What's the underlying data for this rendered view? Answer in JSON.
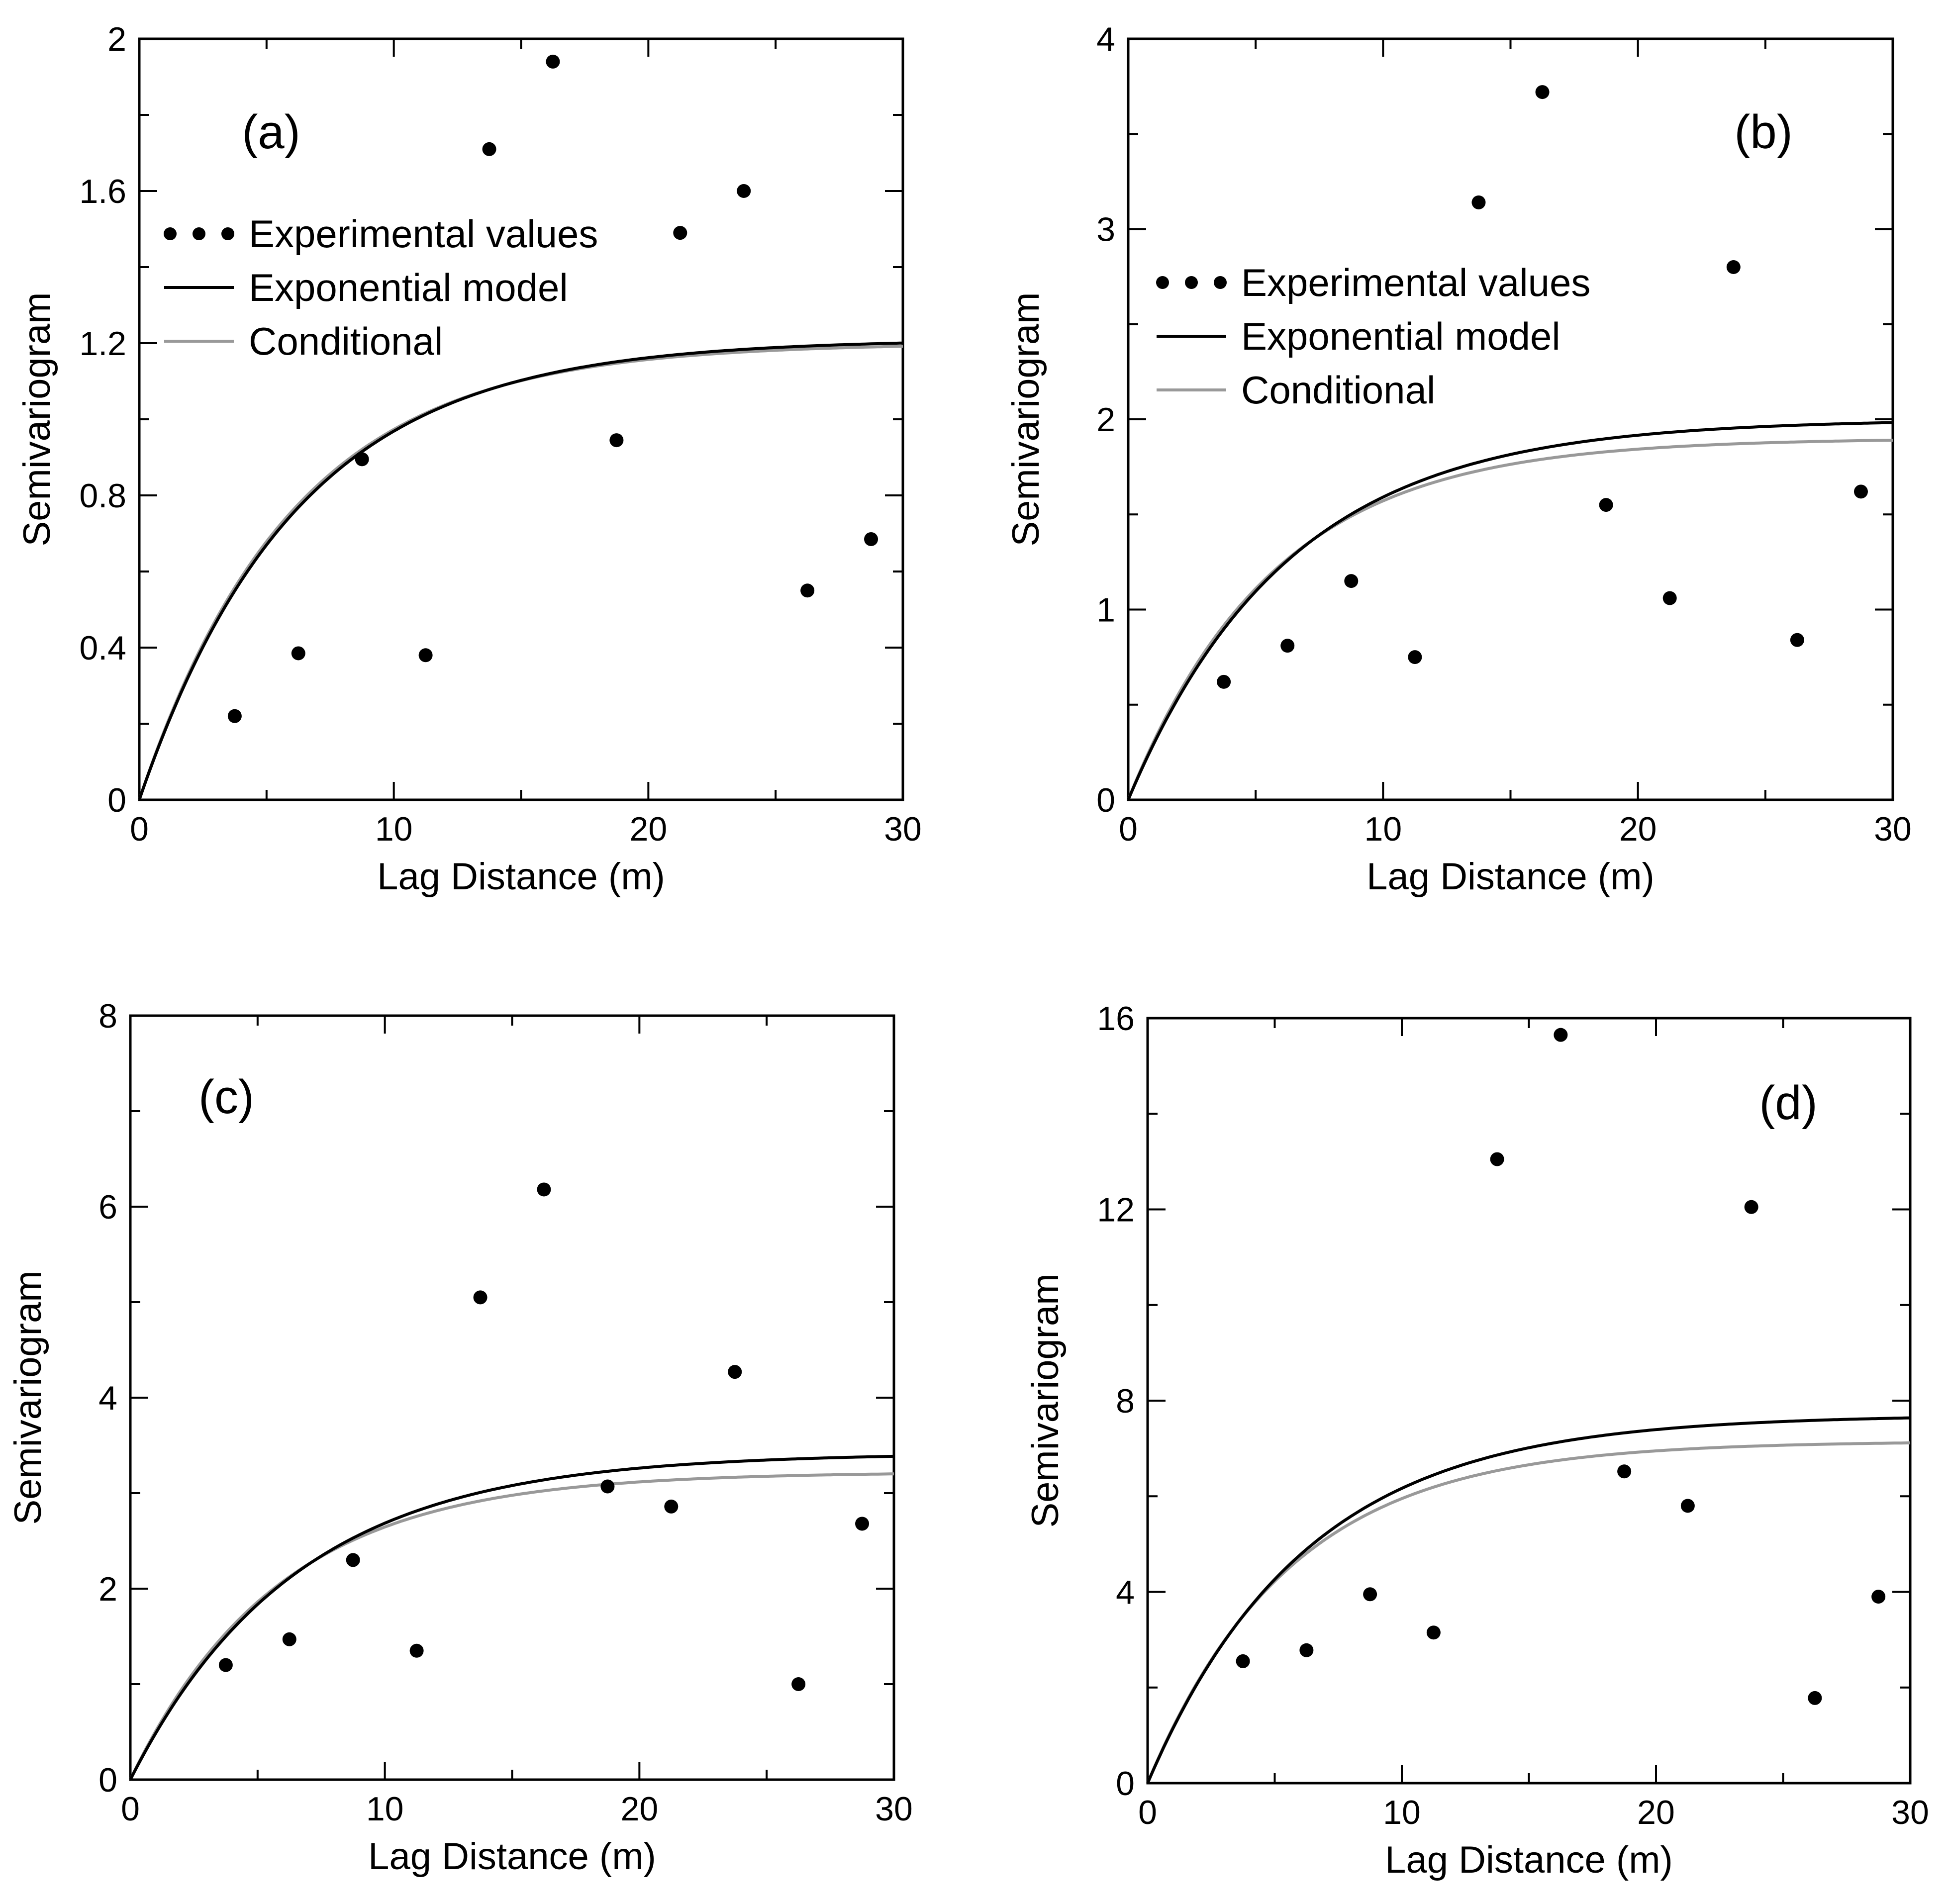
{
  "colors": {
    "experimental": "#000000",
    "exponential_model": "#000000",
    "conditional": "#999999",
    "axes": "#000000",
    "background": "#ffffff"
  },
  "chart_data": [
    {
      "type": "scatter",
      "panel_label": "(a)",
      "xlabel": "Lag Distance (m)",
      "ylabel": "Semivariogram",
      "xlim": [
        0,
        30
      ],
      "ylim": [
        0,
        2
      ],
      "xticks": [
        0,
        10,
        20,
        30
      ],
      "yticks": [
        0,
        0.4,
        0.8,
        1.2,
        1.6,
        2
      ],
      "ytick_labels": [
        "0",
        "0.4",
        "0.8",
        "1.2",
        "1.6",
        "2"
      ],
      "grid": false,
      "legend_position": "upper-left",
      "experimental": {
        "name": "Experimental values",
        "x": [
          3.75,
          6.25,
          8.75,
          11.25,
          13.75,
          16.25,
          18.75,
          21.25,
          23.75,
          26.25,
          28.75
        ],
        "y": [
          0.22,
          0.385,
          0.895,
          0.38,
          1.71,
          1.94,
          0.945,
          1.49,
          1.6,
          0.55,
          0.685
        ]
      },
      "exponential_model": {
        "name": "Exponential model",
        "sill": 1.21,
        "range_param": 6.2
      },
      "conditional": {
        "name": "Conditional",
        "sill": 1.2,
        "range_param": 6.0
      }
    },
    {
      "type": "scatter",
      "panel_label": "(b)",
      "xlabel": "Lag Distance (m)",
      "ylabel": "Semivariogram",
      "xlim": [
        0,
        30
      ],
      "ylim": [
        0,
        4
      ],
      "xticks": [
        0,
        10,
        20,
        30
      ],
      "yticks": [
        0,
        1,
        2,
        3,
        4
      ],
      "ytick_labels": [
        "0",
        "1",
        "2",
        "3",
        "4"
      ],
      "grid": false,
      "legend_position": "middle-left",
      "experimental": {
        "name": "Experimental values",
        "x": [
          3.75,
          6.25,
          8.75,
          11.25,
          13.75,
          16.25,
          18.75,
          21.25,
          23.75,
          26.25,
          28.75
        ],
        "y": [
          0.62,
          0.81,
          1.15,
          0.75,
          3.14,
          3.72,
          1.55,
          1.06,
          2.8,
          0.84,
          1.62
        ]
      },
      "exponential_model": {
        "name": "Exponential model",
        "sill": 2.0,
        "range_param": 6.3
      },
      "conditional": {
        "name": "Conditional",
        "sill": 1.9,
        "range_param": 5.7
      }
    },
    {
      "type": "scatter",
      "panel_label": "(c)",
      "xlabel": "Lag Distance (m)",
      "ylabel": "Semivariogram",
      "xlim": [
        0,
        30
      ],
      "ylim": [
        0,
        8
      ],
      "xticks": [
        0,
        10,
        20,
        30
      ],
      "yticks": [
        0,
        2,
        4,
        6,
        8
      ],
      "ytick_labels": [
        "0",
        "2",
        "4",
        "6",
        "8"
      ],
      "grid": false,
      "legend_position": "none",
      "experimental": {
        "name": "Experimental values",
        "x": [
          3.75,
          6.25,
          8.75,
          11.25,
          13.75,
          16.25,
          18.75,
          21.25,
          23.75,
          26.25,
          28.75
        ],
        "y": [
          1.2,
          1.47,
          2.3,
          1.35,
          5.05,
          6.18,
          3.07,
          2.86,
          4.27,
          1.0,
          2.68
        ]
      },
      "exponential_model": {
        "name": "Exponential model",
        "sill": 3.42,
        "range_param": 6.5
      },
      "conditional": {
        "name": "Conditional",
        "sill": 3.22,
        "range_param": 5.8
      }
    },
    {
      "type": "scatter",
      "panel_label": "(d)",
      "xlabel": "Lag Distance (m)",
      "ylabel": "Semivariogram",
      "xlim": [
        0,
        30
      ],
      "ylim": [
        0,
        16
      ],
      "xticks": [
        0,
        10,
        20,
        30
      ],
      "yticks": [
        0,
        4,
        8,
        12,
        16
      ],
      "ytick_labels": [
        "0",
        "4",
        "8",
        "12",
        "16"
      ],
      "grid": false,
      "legend_position": "none",
      "experimental": {
        "name": "Experimental values",
        "x": [
          3.75,
          6.25,
          8.75,
          11.25,
          13.75,
          16.25,
          18.75,
          21.25,
          23.75,
          26.25,
          28.75
        ],
        "y": [
          2.55,
          2.78,
          3.95,
          3.15,
          13.05,
          15.65,
          6.52,
          5.8,
          12.05,
          1.78,
          3.9
        ]
      },
      "exponential_model": {
        "name": "Exponential model",
        "sill": 7.7,
        "range_param": 6.2
      },
      "conditional": {
        "name": "Conditional",
        "sill": 7.15,
        "range_param": 5.6
      }
    }
  ]
}
